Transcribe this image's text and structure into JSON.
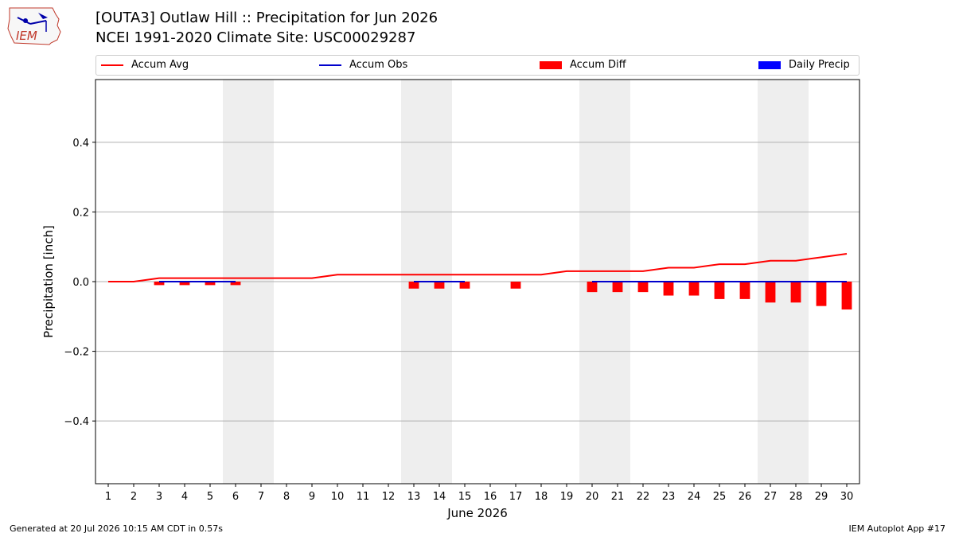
{
  "header": {
    "title_line1": "[OUTA3] Outlaw Hill :: Precipitation for Jun 2026",
    "title_line2": "NCEI 1991-2020 Climate Site: USC00029287",
    "logo_text": "IEM"
  },
  "legend": {
    "accum_avg": "Accum Avg",
    "accum_obs": "Accum Obs",
    "accum_diff": "Accum Diff",
    "daily_precip": "Daily Precip"
  },
  "footer": {
    "generated": "Generated at 20 Jul 2026 10:15 AM CDT in 0.57s",
    "app": "IEM Autoplot App #17"
  },
  "colors": {
    "accum_avg": "#ff0000",
    "accum_obs": "#0000cc",
    "accum_diff": "#ff0000",
    "daily_precip": "#0000ff",
    "weekend_shade": "#eeeeee",
    "grid": "#b0b0b0"
  },
  "chart_data": {
    "type": "bar",
    "title": "[OUTA3] Outlaw Hill :: Precipitation for Jun 2026",
    "xlabel": "June 2026",
    "ylabel": "Precipitation [inch]",
    "ylim": [
      -0.58,
      0.58
    ],
    "yticks": [
      -0.4,
      -0.2,
      0.0,
      0.2,
      0.4
    ],
    "ytick_labels": [
      "−0.4",
      "−0.2",
      "0.0",
      "0.2",
      "0.4"
    ],
    "grid": "horizontal",
    "legend_position": "top",
    "x": [
      1,
      2,
      3,
      4,
      5,
      6,
      7,
      8,
      9,
      10,
      11,
      12,
      13,
      14,
      15,
      16,
      17,
      18,
      19,
      20,
      21,
      22,
      23,
      24,
      25,
      26,
      27,
      28,
      29,
      30
    ],
    "weekend_shaded_days": [
      [
        6,
        7
      ],
      [
        13,
        14
      ],
      [
        20,
        21
      ],
      [
        27,
        28
      ]
    ],
    "series": [
      {
        "name": "Accum Avg",
        "kind": "line",
        "values": [
          0.0,
          0.0,
          0.01,
          0.01,
          0.01,
          0.01,
          0.01,
          0.01,
          0.01,
          0.02,
          0.02,
          0.02,
          0.02,
          0.02,
          0.02,
          0.02,
          0.02,
          0.02,
          0.03,
          0.03,
          0.03,
          0.03,
          0.04,
          0.04,
          0.05,
          0.05,
          0.06,
          0.06,
          0.07,
          0.08
        ]
      },
      {
        "name": "Accum Obs",
        "kind": "line",
        "segments": [
          {
            "x": [
              3,
              4,
              5,
              6
            ],
            "values": [
              0.0,
              0.0,
              0.0,
              0.0
            ]
          },
          {
            "x": [
              13,
              14,
              15
            ],
            "values": [
              0.0,
              0.0,
              0.0
            ]
          },
          {
            "x": [
              20,
              21,
              22,
              23,
              24,
              25,
              26,
              27,
              28,
              29,
              30
            ],
            "values": [
              0.0,
              0.0,
              0.0,
              0.0,
              0.0,
              0.0,
              0.0,
              0.0,
              0.0,
              0.0,
              0.0
            ]
          }
        ]
      },
      {
        "name": "Accum Diff",
        "kind": "bar",
        "x": [
          3,
          4,
          5,
          6,
          13,
          14,
          15,
          17,
          20,
          21,
          22,
          23,
          24,
          25,
          26,
          27,
          28,
          29,
          30
        ],
        "values": [
          -0.01,
          -0.01,
          -0.01,
          -0.01,
          -0.02,
          -0.02,
          -0.02,
          -0.02,
          -0.03,
          -0.03,
          -0.03,
          -0.04,
          -0.04,
          -0.05,
          -0.05,
          -0.06,
          -0.06,
          -0.07,
          -0.08
        ]
      },
      {
        "name": "Daily Precip",
        "kind": "bar",
        "x": [],
        "values": []
      }
    ]
  }
}
